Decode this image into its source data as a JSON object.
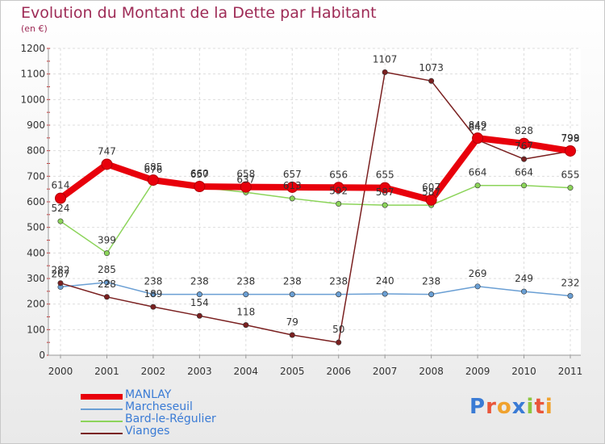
{
  "title": "Evolution du Montant de la Dette par Habitant",
  "subtitle": "(en €)",
  "brand": "Proxiti",
  "chart_data": {
    "type": "line",
    "x": [
      "2000",
      "2001",
      "2002",
      "2003",
      "2004",
      "2005",
      "2006",
      "2007",
      "2008",
      "2009",
      "2010",
      "2011"
    ],
    "ylim": [
      0,
      1200
    ],
    "yticks": [
      "0",
      "100",
      "200",
      "300",
      "400",
      "500",
      "600",
      "700",
      "800",
      "900",
      "1000",
      "1100",
      "1200"
    ],
    "series": [
      {
        "name": "MANLAY",
        "color": "#e8000b",
        "values": [
          614,
          747,
          685,
          660,
          658,
          657,
          656,
          655,
          607,
          849,
          828,
          799
        ],
        "labels": [
          "614",
          "747",
          "685",
          "660",
          "658",
          "657",
          "656",
          "655",
          "607",
          "849",
          "828",
          "799"
        ]
      },
      {
        "name": "Marcheseuil",
        "color": "#6a9fd4",
        "values": [
          267,
          285,
          238,
          238,
          238,
          238,
          238,
          240,
          238,
          269,
          249,
          232
        ],
        "labels": [
          "267",
          "285",
          "238",
          "238",
          "238",
          "238",
          "238",
          "240",
          "238",
          "269",
          "249",
          "232"
        ]
      },
      {
        "name": "Bard-le-Régulier",
        "color": "#8cd45a",
        "values": [
          524,
          399,
          676,
          657,
          637,
          613,
          592,
          587,
          587,
          664,
          664,
          655
        ],
        "labels": [
          "524",
          "399",
          "676",
          "657",
          "637",
          "613",
          "592",
          "587",
          "587",
          "664",
          "664",
          "655"
        ]
      },
      {
        "name": "Vianges",
        "color": "#7a2020",
        "values": [
          282,
          228,
          189,
          154,
          118,
          79,
          50,
          1107,
          1073,
          842,
          767,
          798
        ],
        "labels": [
          "282",
          "228",
          "189",
          "154",
          "118",
          "79",
          "50",
          "1107",
          "1073",
          "842",
          "767",
          "798"
        ]
      }
    ]
  }
}
